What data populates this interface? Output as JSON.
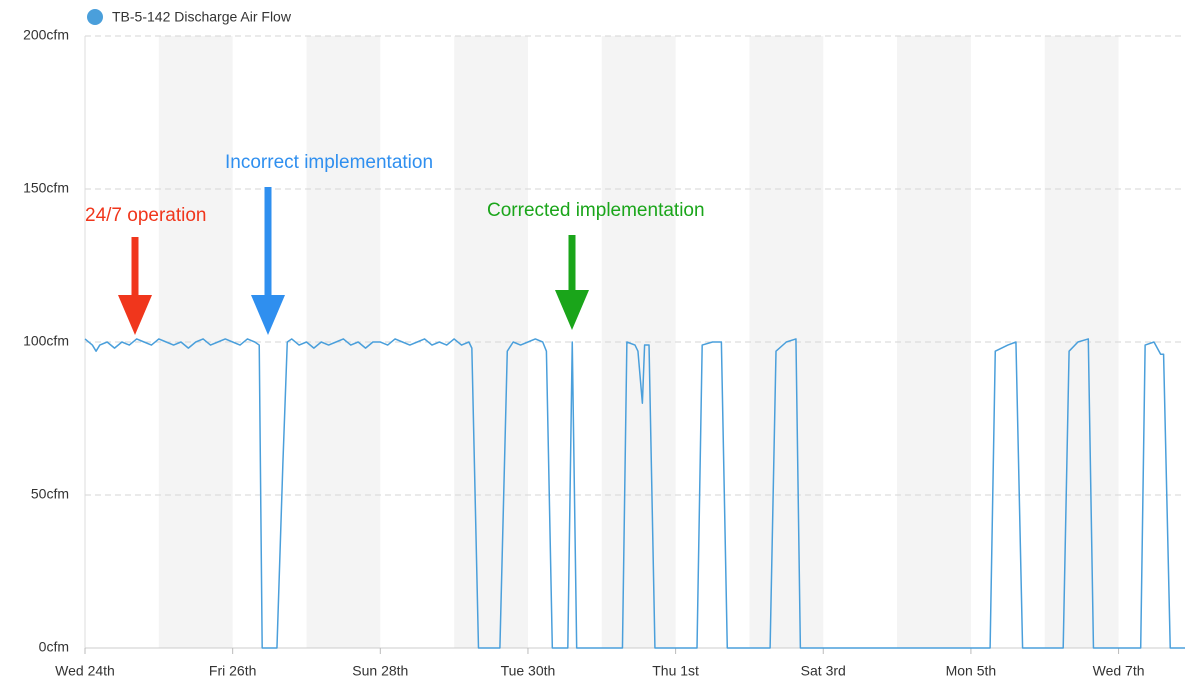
{
  "chart_data": {
    "type": "line",
    "x": [
      0,
      0.1,
      0.15,
      0.2,
      0.3,
      0.4,
      0.5,
      0.6,
      0.7,
      0.8,
      0.9,
      1.0,
      1.1,
      1.2,
      1.3,
      1.4,
      1.5,
      1.6,
      1.7,
      1.8,
      1.9,
      2.0,
      2.1,
      2.2,
      2.3,
      2.36,
      2.4,
      2.6,
      2.68,
      2.74,
      2.8,
      2.9,
      3.0,
      3.1,
      3.2,
      3.3,
      3.4,
      3.5,
      3.6,
      3.7,
      3.8,
      3.9,
      4.0,
      4.1,
      4.2,
      4.3,
      4.4,
      4.5,
      4.6,
      4.7,
      4.8,
      4.9,
      5.0,
      5.1,
      5.2,
      5.24,
      5.33,
      5.62,
      5.72,
      5.8,
      5.9,
      6.0,
      6.1,
      6.2,
      6.25,
      6.33,
      6.54,
      6.6,
      6.66,
      7.28,
      7.34,
      7.45,
      7.49,
      7.55,
      7.58,
      7.64,
      7.72,
      8.29,
      8.36,
      8.5,
      8.62,
      8.7,
      9.28,
      9.36,
      9.5,
      9.63,
      9.69,
      12.26,
      12.33,
      12.5,
      12.61,
      12.7,
      13.25,
      13.33,
      13.45,
      13.59,
      13.66,
      14.3,
      14.36,
      14.48,
      14.57,
      14.61,
      14.7,
      14.9
    ],
    "series": [
      {
        "name": "TB-5-142 Discharge Air Flow",
        "color": "#4a9fdb",
        "values": [
          101,
          99,
          97,
          99,
          100,
          98,
          100,
          99,
          101,
          100,
          99,
          101,
          100,
          99,
          100,
          98,
          100,
          101,
          99,
          100,
          101,
          100,
          99,
          101,
          100,
          99,
          0,
          0,
          60,
          100,
          101,
          99,
          100,
          98,
          100,
          99,
          100,
          101,
          99,
          100,
          98,
          100,
          100,
          99,
          101,
          100,
          99,
          100,
          101,
          99,
          100,
          99,
          101,
          99,
          100,
          98,
          0,
          0,
          97,
          100,
          99,
          100,
          101,
          100,
          97,
          0,
          0,
          100,
          0,
          0,
          100,
          99,
          97,
          80,
          99,
          99,
          0,
          0,
          99,
          100,
          100,
          0,
          0,
          97,
          100,
          101,
          0,
          0,
          97,
          99,
          100,
          0,
          0,
          97,
          100,
          101,
          0,
          0,
          99,
          100,
          96,
          96,
          0,
          0
        ]
      }
    ],
    "xlim": [
      0,
      14.9
    ],
    "xticks": [
      {
        "value": 0,
        "label": "Wed 24th"
      },
      {
        "value": 2,
        "label": "Fri 26th"
      },
      {
        "value": 4,
        "label": "Sun 28th"
      },
      {
        "value": 6,
        "label": "Tue 30th"
      },
      {
        "value": 8,
        "label": "Thu 1st"
      },
      {
        "value": 10,
        "label": "Sat 3rd"
      },
      {
        "value": 12,
        "label": "Mon 5th"
      },
      {
        "value": 14,
        "label": "Wed 7th"
      }
    ],
    "ylim": [
      0,
      200
    ],
    "yticks": [
      {
        "value": 0,
        "label": "0cfm"
      },
      {
        "value": 50,
        "label": "50cfm"
      },
      {
        "value": 100,
        "label": "100cfm"
      },
      {
        "value": 150,
        "label": "150cfm"
      },
      {
        "value": 200,
        "label": "200cfm"
      }
    ],
    "grid": true,
    "legend": "top-left",
    "annotations": [
      {
        "text": "24/7 operation",
        "color": "#f0361c"
      },
      {
        "text": "Incorrect implementation",
        "color": "#2f8fef"
      },
      {
        "text": "Corrected implementation",
        "color": "#1aa51a"
      }
    ]
  }
}
